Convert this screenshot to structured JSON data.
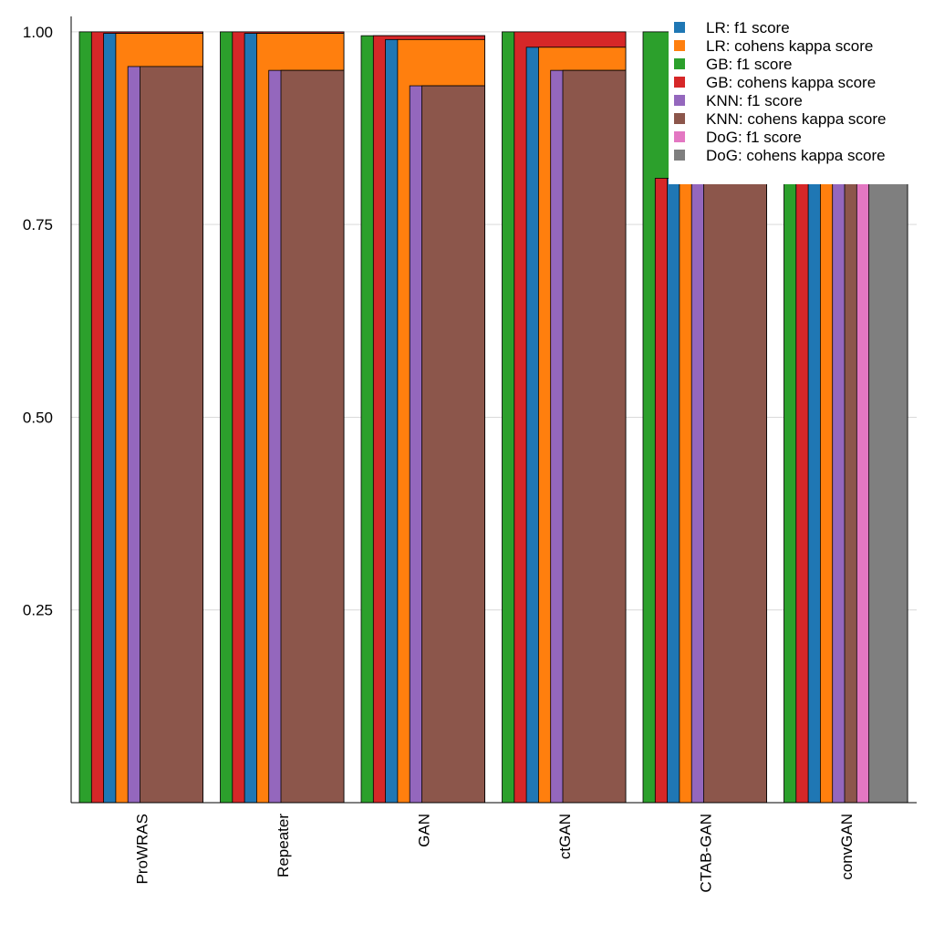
{
  "chart_data": {
    "type": "bar",
    "title": "",
    "xlabel": "",
    "ylabel": "",
    "ylim": [
      0.0,
      1.02
    ],
    "yticks": [
      "0.25",
      "0.50",
      "0.75",
      "1.00"
    ],
    "grid": "horizontal",
    "legend_position": "top-right",
    "categories": [
      "ProWRAS",
      "Repeater",
      "GAN",
      "ctGAN",
      "CTAB-GAN",
      "convGAN"
    ],
    "series": [
      {
        "name": "GB: f1 score",
        "color": "#2ca02c",
        "values": [
          1.0,
          1.0,
          0.995,
          1.0,
          1.0,
          0.81
        ]
      },
      {
        "name": "GB: cohens kappa score",
        "color": "#d62728",
        "values": [
          1.0,
          1.0,
          0.995,
          1.0,
          0.81,
          0.81
        ]
      },
      {
        "name": "LR: f1 score",
        "color": "#1f77b4",
        "values": [
          0.998,
          0.998,
          0.99,
          0.98,
          0.81,
          0.81
        ]
      },
      {
        "name": "LR: cohens kappa score",
        "color": "#ff7f0e",
        "values": [
          0.998,
          0.998,
          0.99,
          0.98,
          0.81,
          0.81
        ]
      },
      {
        "name": "KNN: f1 score",
        "color": "#9467bd",
        "values": [
          0.955,
          0.95,
          0.93,
          0.95,
          0.81,
          0.81
        ]
      },
      {
        "name": "KNN: cohens kappa score",
        "color": "#8c564b",
        "values": [
          0.955,
          0.95,
          0.93,
          0.95,
          0.81,
          0.81
        ]
      },
      {
        "name": "DoG: f1 score",
        "color": "#e377c2",
        "values": [
          null,
          null,
          null,
          null,
          null,
          0.81
        ]
      },
      {
        "name": "DoG: cohens kappa score",
        "color": "#7f7f7f",
        "values": [
          null,
          null,
          null,
          null,
          null,
          0.81
        ]
      }
    ],
    "legend_order": [
      "LR: f1 score",
      "LR: cohens kappa score",
      "GB: f1 score",
      "GB: cohens kappa score",
      "KNN: f1 score",
      "KNN: cohens kappa score",
      "DoG: f1 score",
      "DoG: cohens kappa score"
    ]
  }
}
